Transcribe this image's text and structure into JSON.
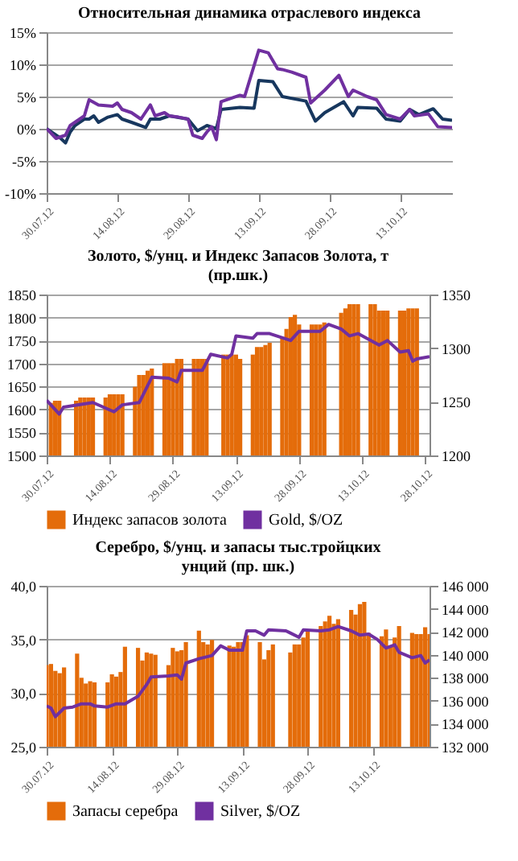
{
  "chart_data": [
    {
      "type": "line",
      "title": "Относительная динамика отраслевого индекса",
      "xlim": [
        "2012-07-30",
        "2012-10-24"
      ],
      "xticks": [
        {
          "value": "2012-07-30",
          "label": "30.07.12"
        },
        {
          "value": "2012-08-14",
          "label": "14.08.12"
        },
        {
          "value": "2012-08-29",
          "label": "29.08.12"
        },
        {
          "value": "2012-09-13",
          "label": "13.09.12"
        },
        {
          "value": "2012-09-28",
          "label": "28.09.12"
        },
        {
          "value": "2012-10-13",
          "label": "13.10.12"
        }
      ],
      "ylim": [
        -10,
        15
      ],
      "yticks": [
        {
          "value": -10,
          "label": "-10%"
        },
        {
          "value": -5,
          "label": "-5%"
        },
        {
          "value": 0,
          "label": "0%"
        },
        {
          "value": 5,
          "label": "5%"
        },
        {
          "value": 10,
          "label": "10%"
        },
        {
          "value": 15,
          "label": "15%"
        }
      ],
      "grid": "y",
      "legend": false,
      "series": [
        {
          "color": "#17375e",
          "x": [
            "2012-07-30",
            "2012-08-01",
            "2012-08-02",
            "2012-08-03",
            "2012-08-04",
            "2012-08-05",
            "2012-08-07",
            "2012-08-08",
            "2012-08-09",
            "2012-08-10",
            "2012-08-12",
            "2012-08-14",
            "2012-08-15",
            "2012-08-17",
            "2012-08-20",
            "2012-08-21",
            "2012-08-23",
            "2012-08-25",
            "2012-08-29",
            "2012-08-31",
            "2012-09-02",
            "2012-09-04",
            "2012-09-05",
            "2012-09-09",
            "2012-09-12",
            "2012-09-13",
            "2012-09-16",
            "2012-09-18",
            "2012-09-23",
            "2012-09-25",
            "2012-09-27",
            "2012-10-01",
            "2012-10-03",
            "2012-10-04",
            "2012-10-08",
            "2012-10-10",
            "2012-10-13",
            "2012-10-15",
            "2012-10-17",
            "2012-10-20",
            "2012-10-22",
            "2012-10-24"
          ],
          "values": [
            0,
            -1,
            -1.5,
            -2.2,
            -0.5,
            0.5,
            1.5,
            1.5,
            2,
            1,
            1.8,
            2.2,
            1.5,
            1,
            0.2,
            1.5,
            1.5,
            2,
            1.5,
            -0.3,
            0.5,
            0,
            3,
            3.3,
            3.2,
            7.5,
            7.3,
            5,
            4.3,
            1.2,
            2.5,
            4.2,
            2,
            3.3,
            3.2,
            1.5,
            1.2,
            3,
            2.2,
            3.1,
            1.5,
            1.3
          ]
        },
        {
          "color": "#7030a0",
          "x": [
            "2012-07-30",
            "2012-08-01",
            "2012-08-03",
            "2012-08-04",
            "2012-08-07",
            "2012-08-08",
            "2012-08-10",
            "2012-08-13",
            "2012-08-14",
            "2012-08-15",
            "2012-08-17",
            "2012-08-19",
            "2012-08-21",
            "2012-08-22",
            "2012-08-24",
            "2012-08-25",
            "2012-08-27",
            "2012-08-29",
            "2012-08-30",
            "2012-09-01",
            "2012-09-02",
            "2012-09-03",
            "2012-09-04",
            "2012-09-05",
            "2012-09-09",
            "2012-09-10",
            "2012-09-13",
            "2012-09-15",
            "2012-09-17",
            "2012-09-18",
            "2012-09-20",
            "2012-09-23",
            "2012-09-24",
            "2012-09-27",
            "2012-09-30",
            "2012-10-02",
            "2012-10-03",
            "2012-10-06",
            "2012-10-08",
            "2012-10-10",
            "2012-10-13",
            "2012-10-15",
            "2012-10-16",
            "2012-10-19",
            "2012-10-21",
            "2012-10-24"
          ],
          "values": [
            0,
            -1.5,
            -1,
            0.5,
            2,
            4.5,
            3.7,
            3.5,
            4,
            3,
            2.5,
            1.5,
            3.7,
            2,
            2.5,
            2,
            1.8,
            1.5,
            -1,
            -1.5,
            -0.5,
            0.3,
            -1.7,
            4.2,
            5.2,
            5,
            12.2,
            11.8,
            9.3,
            9.2,
            8.8,
            8,
            4,
            6,
            8.3,
            5,
            6,
            5,
            4.5,
            2.2,
            1.5,
            3,
            2,
            2.3,
            0.3,
            0.2
          ]
        }
      ]
    },
    {
      "type": "bar",
      "title": "Золото, $/унц. и Индекс Запасов Золота, т (пр.шк.)",
      "xlim": [
        "2012-07-30",
        "2012-10-29"
      ],
      "xticks": [
        {
          "value": "2012-07-30",
          "label": "30.07.12"
        },
        {
          "value": "2012-08-14",
          "label": "14.08.12"
        },
        {
          "value": "2012-08-29",
          "label": "29.08.12"
        },
        {
          "value": "2012-09-13",
          "label": "13.09.12"
        },
        {
          "value": "2012-09-28",
          "label": "28.09.12"
        },
        {
          "value": "2012-10-13",
          "label": "13.10.12"
        },
        {
          "value": "2012-10-28",
          "label": "28.10.12"
        }
      ],
      "ylim": [
        1500,
        1850
      ],
      "yticks": [
        1500,
        1550,
        1600,
        1650,
        1700,
        1750,
        1800,
        1850
      ],
      "y2lim": [
        1200,
        1350
      ],
      "y2ticks": [
        1200,
        1250,
        1300,
        1350
      ],
      "grid": "y",
      "legend": "bottom",
      "series": [
        {
          "name": "Индекс запасов золота",
          "type": "bar",
          "axis": "y2",
          "color": "#e46c0a",
          "x": [
            "2012-07-31",
            "2012-08-01",
            "2012-08-02",
            "2012-08-06",
            "2012-08-07",
            "2012-08-08",
            "2012-08-09",
            "2012-08-10",
            "2012-08-13",
            "2012-08-14",
            "2012-08-15",
            "2012-08-16",
            "2012-08-17",
            "2012-08-20",
            "2012-08-21",
            "2012-08-22",
            "2012-08-23",
            "2012-08-24",
            "2012-08-27",
            "2012-08-28",
            "2012-08-29",
            "2012-08-30",
            "2012-08-31",
            "2012-09-03",
            "2012-09-04",
            "2012-09-05",
            "2012-09-06",
            "2012-09-10",
            "2012-09-11",
            "2012-09-12",
            "2012-09-13",
            "2012-09-14",
            "2012-09-17",
            "2012-09-18",
            "2012-09-19",
            "2012-09-20",
            "2012-09-21",
            "2012-09-24",
            "2012-09-25",
            "2012-09-26",
            "2012-09-27",
            "2012-09-28",
            "2012-10-01",
            "2012-10-02",
            "2012-10-03",
            "2012-10-04",
            "2012-10-08",
            "2012-10-09",
            "2012-10-10",
            "2012-10-11",
            "2012-10-12",
            "2012-10-15",
            "2012-10-16",
            "2012-10-17",
            "2012-10-18",
            "2012-10-19",
            "2012-10-22",
            "2012-10-23",
            "2012-10-24",
            "2012-10-25",
            "2012-10-26"
          ],
          "values": [
            1249,
            1251,
            1251,
            1251,
            1254,
            1254,
            1254,
            1254,
            1254,
            1257,
            1257,
            1257,
            1257,
            1264,
            1275,
            1275,
            1279,
            1281,
            1286,
            1286,
            1286,
            1290,
            1290,
            1290,
            1290,
            1290,
            1290,
            1294,
            1294,
            1294,
            1294,
            1290,
            1294,
            1301,
            1301,
            1303,
            1305,
            1309,
            1318,
            1329,
            1331,
            1322,
            1322,
            1322,
            1322,
            1324,
            1333,
            1337,
            1341,
            1341,
            1341,
            1341,
            1341,
            1335,
            1335,
            1335,
            1335,
            1335,
            1337,
            1337,
            1337
          ]
        },
        {
          "name": "Gold, $/OZ",
          "type": "line",
          "color": "#7030a0",
          "x": [
            "2012-07-30",
            "2012-08-02",
            "2012-08-03",
            "2012-08-10",
            "2012-08-15",
            "2012-08-17",
            "2012-08-21",
            "2012-08-24",
            "2012-08-28",
            "2012-08-30",
            "2012-08-31",
            "2012-09-05",
            "2012-09-07",
            "2012-09-11",
            "2012-09-12",
            "2012-09-13",
            "2012-09-17",
            "2012-09-18",
            "2012-09-21",
            "2012-09-26",
            "2012-09-28",
            "2012-10-03",
            "2012-10-05",
            "2012-10-08",
            "2012-10-10",
            "2012-10-12",
            "2012-10-17",
            "2012-10-19",
            "2012-10-22",
            "2012-10-24",
            "2012-10-25",
            "2012-10-26",
            "2012-10-29"
          ],
          "values": [
            1620,
            1590,
            1605,
            1615,
            1595,
            1610,
            1615,
            1670,
            1668,
            1660,
            1685,
            1685,
            1720,
            1712,
            1720,
            1760,
            1755,
            1765,
            1765,
            1750,
            1770,
            1770,
            1785,
            1775,
            1760,
            1765,
            1740,
            1750,
            1725,
            1728,
            1705,
            1710,
            1715
          ]
        }
      ]
    },
    {
      "type": "bar",
      "title": "Серебро, $/унц. и запасы тыс.тройцких унций (пр. шк.)",
      "xlim": [
        "2012-07-30",
        "2012-10-26"
      ],
      "xticks": [
        {
          "value": "2012-07-30",
          "label": "30.07.12"
        },
        {
          "value": "2012-08-14",
          "label": "14.08.12"
        },
        {
          "value": "2012-08-29",
          "label": "29.08.12"
        },
        {
          "value": "2012-09-13",
          "label": "13.09.12"
        },
        {
          "value": "2012-09-28",
          "label": "28.09.12"
        },
        {
          "value": "2012-10-13",
          "label": "13.10.12"
        }
      ],
      "ylim": [
        25,
        40
      ],
      "yticks": [
        {
          "value": 25,
          "label": "25,0"
        },
        {
          "value": 30,
          "label": "30,0"
        },
        {
          "value": 35,
          "label": "35,0"
        },
        {
          "value": 40,
          "label": "40,0"
        }
      ],
      "y2lim": [
        132000,
        146000
      ],
      "y2ticks": [
        {
          "value": 132000,
          "label": "132 000"
        },
        {
          "value": 134000,
          "label": "134 000"
        },
        {
          "value": 136000,
          "label": "136 000"
        },
        {
          "value": 138000,
          "label": "138 000"
        },
        {
          "value": 140000,
          "label": "140 000"
        },
        {
          "value": 142000,
          "label": "142 000"
        },
        {
          "value": 144000,
          "label": "144 000"
        },
        {
          "value": 146000,
          "label": "146 000"
        }
      ],
      "grid": "y",
      "legend": "bottom",
      "series": [
        {
          "name": "Запасы серебра",
          "type": "bar",
          "axis": "y2",
          "color": "#e46c0a",
          "x": [
            "2012-07-30",
            "2012-07-31",
            "2012-08-01",
            "2012-08-02",
            "2012-08-03",
            "2012-08-06",
            "2012-08-07",
            "2012-08-08",
            "2012-08-09",
            "2012-08-10",
            "2012-08-13",
            "2012-08-14",
            "2012-08-15",
            "2012-08-16",
            "2012-08-17",
            "2012-08-20",
            "2012-08-21",
            "2012-08-22",
            "2012-08-23",
            "2012-08-24",
            "2012-08-27",
            "2012-08-28",
            "2012-08-29",
            "2012-08-30",
            "2012-08-31",
            "2012-09-03",
            "2012-09-04",
            "2012-09-05",
            "2012-09-06",
            "2012-09-10",
            "2012-09-11",
            "2012-09-12",
            "2012-09-13",
            "2012-09-14",
            "2012-09-17",
            "2012-09-18",
            "2012-09-19",
            "2012-09-20",
            "2012-09-24",
            "2012-09-25",
            "2012-09-26",
            "2012-09-27",
            "2012-09-28",
            "2012-10-01",
            "2012-10-02",
            "2012-10-03",
            "2012-10-04",
            "2012-10-05",
            "2012-10-08",
            "2012-10-09",
            "2012-10-10",
            "2012-10-11",
            "2012-10-12",
            "2012-10-15",
            "2012-10-16",
            "2012-10-17",
            "2012-10-18",
            "2012-10-19",
            "2012-10-22",
            "2012-10-23",
            "2012-10-24",
            "2012-10-25",
            "2012-10-26"
          ],
          "values": [
            139100,
            139200,
            138600,
            138400,
            138900,
            140100,
            138000,
            137500,
            137700,
            137600,
            137600,
            138300,
            138100,
            138500,
            140700,
            140600,
            139500,
            140200,
            140100,
            140000,
            139100,
            140600,
            140300,
            140400,
            141100,
            142100,
            141100,
            140900,
            141300,
            140800,
            140700,
            141100,
            141100,
            141700,
            141100,
            139600,
            140400,
            140900,
            140200,
            140900,
            140900,
            141500,
            142100,
            142500,
            142900,
            143400,
            142700,
            143100,
            143900,
            143500,
            144400,
            144600,
            141900,
            141600,
            142200,
            140800,
            141500,
            142500,
            141900,
            141800,
            141800,
            142400,
            141800
          ]
        },
        {
          "name": "Silver, $/OZ",
          "type": "line",
          "color": "#7030a0",
          "x": [
            "2012-07-30",
            "2012-07-31",
            "2012-08-01",
            "2012-08-03",
            "2012-08-05",
            "2012-08-07",
            "2012-08-09",
            "2012-08-10",
            "2012-08-13",
            "2012-08-15",
            "2012-08-17",
            "2012-08-20",
            "2012-08-22",
            "2012-08-23",
            "2012-08-27",
            "2012-08-29",
            "2012-08-30",
            "2012-08-31",
            "2012-09-03",
            "2012-09-06",
            "2012-09-08",
            "2012-09-10",
            "2012-09-13",
            "2012-09-14",
            "2012-09-16",
            "2012-09-18",
            "2012-09-19",
            "2012-09-23",
            "2012-09-24",
            "2012-09-26",
            "2012-09-27",
            "2012-10-01",
            "2012-10-03",
            "2012-10-05",
            "2012-10-08",
            "2012-10-10",
            "2012-10-12",
            "2012-10-14",
            "2012-10-16",
            "2012-10-18",
            "2012-10-19",
            "2012-10-22",
            "2012-10-24",
            "2012-10-25",
            "2012-10-26"
          ],
          "values": [
            28.8,
            28.6,
            27.8,
            28.6,
            28.7,
            29.0,
            29.0,
            28.8,
            28.7,
            29.0,
            29.0,
            29.7,
            30.8,
            31.5,
            31.6,
            31.7,
            31.3,
            32.8,
            33.2,
            33.5,
            34.4,
            34.0,
            34.0,
            35.8,
            35.8,
            35.4,
            35.9,
            35.8,
            35.6,
            35.2,
            35.9,
            35.8,
            35.9,
            36.2,
            35.8,
            35.4,
            35.5,
            35.0,
            34.2,
            34.5,
            33.8,
            33.3,
            33.5,
            32.8,
            33.1
          ]
        }
      ]
    }
  ]
}
